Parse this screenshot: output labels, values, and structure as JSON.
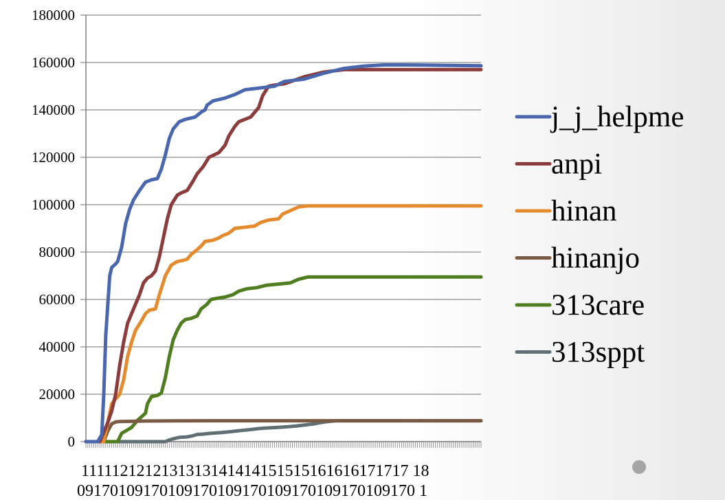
{
  "chart_data": {
    "type": "line",
    "yticks": [
      "0",
      "20000",
      "40000",
      "60000",
      "80000",
      "100000",
      "120000",
      "140000",
      "160000",
      "180000"
    ],
    "ylim": [
      0,
      180000
    ],
    "grid": true,
    "legend_position": "right",
    "xtick_labels": {
      "line1": "1111121212131313141414151515161616171717 18",
      "line2": "09170109170109170109170109170109170109170 1"
    },
    "x_points": 200,
    "series": [
      {
        "name": "j_j_helpme",
        "color": "#4a67ad",
        "points": [
          [
            0,
            0
          ],
          [
            6,
            0
          ],
          [
            8,
            3000
          ],
          [
            9,
            20000
          ],
          [
            10,
            45000
          ],
          [
            12,
            70000
          ],
          [
            13,
            73500
          ],
          [
            15,
            75000
          ],
          [
            16,
            76000
          ],
          [
            18,
            82000
          ],
          [
            20,
            92000
          ],
          [
            22,
            98000
          ],
          [
            24,
            102000
          ],
          [
            27,
            106000
          ],
          [
            30,
            109500
          ],
          [
            33,
            110500
          ],
          [
            36,
            111000
          ],
          [
            38,
            115000
          ],
          [
            40,
            121000
          ],
          [
            42,
            128000
          ],
          [
            44,
            132000
          ],
          [
            47,
            135000
          ],
          [
            50,
            136000
          ],
          [
            55,
            137000
          ],
          [
            58,
            139000
          ],
          [
            60,
            140000
          ],
          [
            61,
            142000
          ],
          [
            64,
            143800
          ],
          [
            70,
            145000
          ],
          [
            75,
            146500
          ],
          [
            80,
            148500
          ],
          [
            85,
            149000
          ],
          [
            95,
            150000
          ],
          [
            100,
            152000
          ],
          [
            110,
            153000
          ],
          [
            120,
            155500
          ],
          [
            130,
            157500
          ],
          [
            140,
            158500
          ],
          [
            150,
            159000
          ],
          [
            160,
            159000
          ],
          [
            170,
            158900
          ],
          [
            180,
            158800
          ],
          [
            199,
            158600
          ]
        ]
      },
      {
        "name": "anpi",
        "color": "#8b3c3c",
        "points": [
          [
            0,
            0
          ],
          [
            7,
            0
          ],
          [
            9,
            4000
          ],
          [
            11,
            8000
          ],
          [
            13,
            13000
          ],
          [
            15,
            20000
          ],
          [
            17,
            32000
          ],
          [
            19,
            42000
          ],
          [
            21,
            50000
          ],
          [
            24,
            56000
          ],
          [
            27,
            62000
          ],
          [
            29,
            67000
          ],
          [
            31,
            69000
          ],
          [
            33,
            70000
          ],
          [
            35,
            72000
          ],
          [
            37,
            78000
          ],
          [
            39,
            86000
          ],
          [
            41,
            94000
          ],
          [
            43,
            100000
          ],
          [
            46,
            104000
          ],
          [
            48,
            105000
          ],
          [
            51,
            106000
          ],
          [
            54,
            110000
          ],
          [
            56,
            113000
          ],
          [
            59,
            116000
          ],
          [
            62,
            120000
          ],
          [
            67,
            122000
          ],
          [
            70,
            125000
          ],
          [
            72,
            129000
          ],
          [
            75,
            133000
          ],
          [
            77,
            135000
          ],
          [
            80,
            136000
          ],
          [
            83,
            137000
          ],
          [
            87,
            141000
          ],
          [
            89,
            146000
          ],
          [
            92,
            150000
          ],
          [
            95,
            150500
          ],
          [
            100,
            151000
          ],
          [
            110,
            154000
          ],
          [
            120,
            156000
          ],
          [
            130,
            157000
          ],
          [
            140,
            157000
          ],
          [
            160,
            157000
          ],
          [
            180,
            157000
          ],
          [
            199,
            157000
          ]
        ]
      },
      {
        "name": "hinan",
        "color": "#e38b2e",
        "points": [
          [
            0,
            0
          ],
          [
            9,
            0
          ],
          [
            11,
            8000
          ],
          [
            13,
            16000
          ],
          [
            15,
            18000
          ],
          [
            17,
            20000
          ],
          [
            19,
            26000
          ],
          [
            21,
            36000
          ],
          [
            23,
            42000
          ],
          [
            25,
            47000
          ],
          [
            28,
            51000
          ],
          [
            30,
            54000
          ],
          [
            32,
            55500
          ],
          [
            35,
            56000
          ],
          [
            37,
            62000
          ],
          [
            40,
            70000
          ],
          [
            43,
            74500
          ],
          [
            46,
            76000
          ],
          [
            49,
            76500
          ],
          [
            51,
            77000
          ],
          [
            53,
            79000
          ],
          [
            56,
            81000
          ],
          [
            58,
            82500
          ],
          [
            60,
            84500
          ],
          [
            64,
            85000
          ],
          [
            67,
            86000
          ],
          [
            69,
            87000
          ],
          [
            72,
            88000
          ],
          [
            75,
            90000
          ],
          [
            80,
            90500
          ],
          [
            85,
            91000
          ],
          [
            88,
            92500
          ],
          [
            92,
            93500
          ],
          [
            97,
            94000
          ],
          [
            99,
            96000
          ],
          [
            103,
            97500
          ],
          [
            107,
            99000
          ],
          [
            112,
            99500
          ],
          [
            120,
            99500
          ],
          [
            140,
            99500
          ],
          [
            160,
            99500
          ],
          [
            180,
            99500
          ],
          [
            199,
            99500
          ]
        ]
      },
      {
        "name": "hinanjo",
        "color": "#7a5a44",
        "points": [
          [
            0,
            0
          ],
          [
            9,
            0
          ],
          [
            11,
            4500
          ],
          [
            13,
            7500
          ],
          [
            15,
            8300
          ],
          [
            17,
            8500
          ],
          [
            30,
            8700
          ],
          [
            60,
            8800
          ],
          [
            100,
            8800
          ],
          [
            140,
            8800
          ],
          [
            170,
            8800
          ],
          [
            199,
            8800
          ]
        ]
      },
      {
        "name": "313care",
        "color": "#4f7d1f",
        "points": [
          [
            0,
            0
          ],
          [
            16,
            0
          ],
          [
            18,
            3500
          ],
          [
            20,
            4500
          ],
          [
            23,
            6000
          ],
          [
            26,
            9000
          ],
          [
            28,
            10500
          ],
          [
            30,
            12000
          ],
          [
            31,
            16000
          ],
          [
            33,
            19000
          ],
          [
            36,
            19500
          ],
          [
            38,
            20500
          ],
          [
            40,
            27000
          ],
          [
            42,
            36000
          ],
          [
            44,
            43000
          ],
          [
            46,
            47000
          ],
          [
            48,
            50000
          ],
          [
            50,
            51500
          ],
          [
            53,
            52000
          ],
          [
            56,
            53000
          ],
          [
            58,
            56000
          ],
          [
            61,
            58000
          ],
          [
            63,
            60000
          ],
          [
            66,
            60500
          ],
          [
            70,
            61000
          ],
          [
            74,
            62000
          ],
          [
            77,
            63500
          ],
          [
            81,
            64500
          ],
          [
            86,
            65000
          ],
          [
            91,
            66000
          ],
          [
            97,
            66500
          ],
          [
            103,
            67000
          ],
          [
            107,
            68500
          ],
          [
            112,
            69500
          ],
          [
            120,
            69500
          ],
          [
            140,
            69500
          ],
          [
            160,
            69500
          ],
          [
            180,
            69500
          ],
          [
            199,
            69500
          ]
        ]
      },
      {
        "name": "313sppt",
        "color": "#5f6f73",
        "points": [
          [
            0,
            0
          ],
          [
            40,
            0
          ],
          [
            42,
            700
          ],
          [
            44,
            1200
          ],
          [
            47,
            1800
          ],
          [
            51,
            2000
          ],
          [
            54,
            2500
          ],
          [
            56,
            3000
          ],
          [
            59,
            3200
          ],
          [
            63,
            3500
          ],
          [
            68,
            3800
          ],
          [
            73,
            4200
          ],
          [
            77,
            4600
          ],
          [
            82,
            5000
          ],
          [
            87,
            5500
          ],
          [
            92,
            5800
          ],
          [
            97,
            6000
          ],
          [
            102,
            6300
          ],
          [
            106,
            6600
          ],
          [
            110,
            7000
          ],
          [
            114,
            7400
          ],
          [
            118,
            8000
          ],
          [
            122,
            8500
          ],
          [
            126,
            8800
          ],
          [
            130,
            8800
          ],
          [
            140,
            8800
          ],
          [
            160,
            8800
          ],
          [
            180,
            8800
          ],
          [
            199,
            8800
          ]
        ]
      }
    ]
  }
}
